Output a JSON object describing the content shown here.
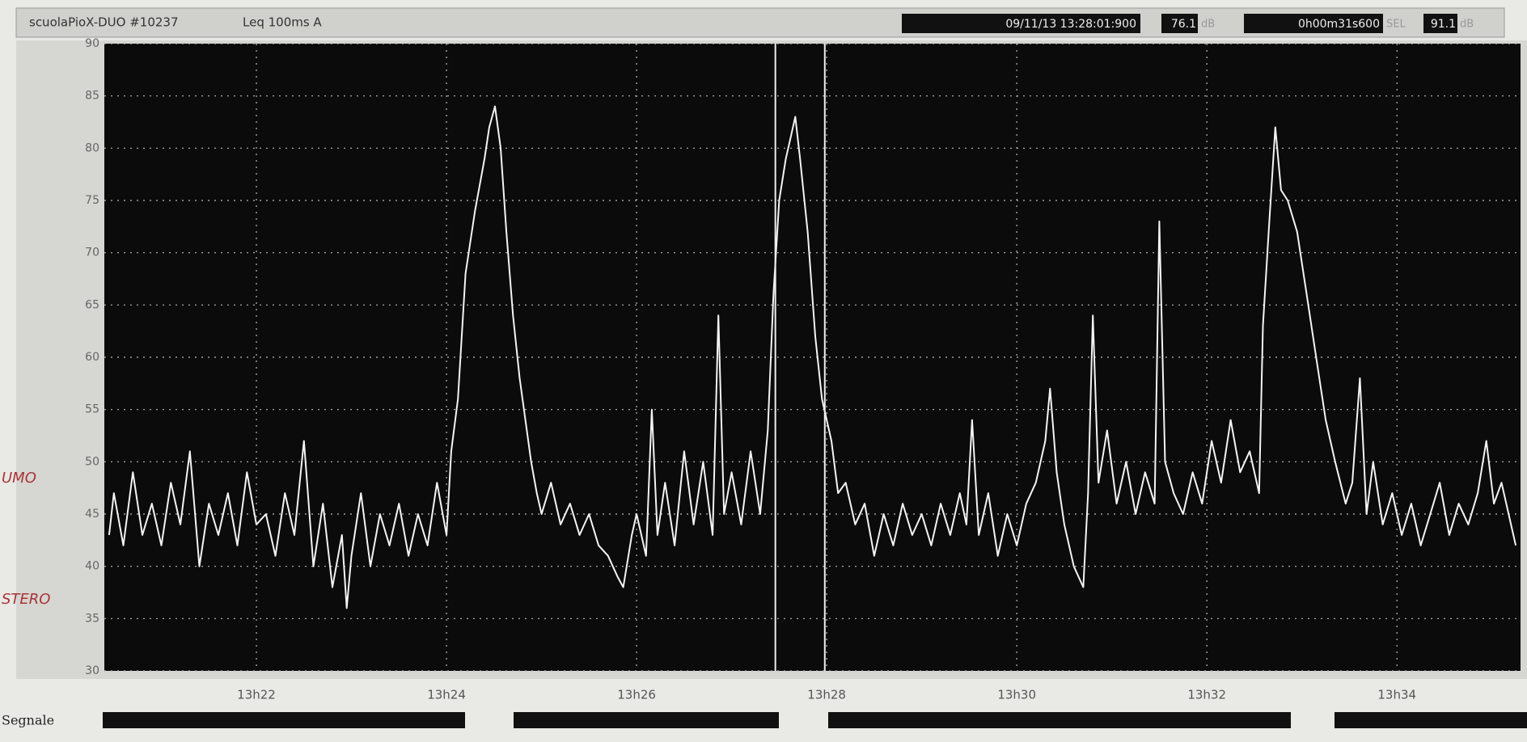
{
  "chart_data": {
    "type": "line",
    "title": "scuolaPioX-DUO #10237",
    "subtitle": "Leq 100ms  A",
    "readouts": [
      "09/11/13 13:28:01:900",
      "76.1",
      "dB",
      "0h00m31s600",
      "SEL",
      "91.1",
      "dB"
    ],
    "signal_label": "Segnale",
    "annotations": [
      "UMO",
      "STERO"
    ],
    "color": "#f4f4f4",
    "grid": true,
    "cursors": [
      27.46,
      27.98
    ],
    "xlim": [
      20.4,
      35.3
    ],
    "xticks": [
      {
        "value": 22,
        "label": "13h22"
      },
      {
        "value": 24,
        "label": "13h24"
      },
      {
        "value": 26,
        "label": "13h26"
      },
      {
        "value": 28,
        "label": "13h28"
      },
      {
        "value": 30,
        "label": "13h30"
      },
      {
        "value": 32,
        "label": "13h32"
      },
      {
        "value": 34,
        "label": "13h34"
      }
    ],
    "ylim": [
      30,
      90
    ],
    "yticks": [
      30,
      35,
      40,
      45,
      50,
      55,
      60,
      65,
      70,
      75,
      80,
      85,
      90
    ],
    "x": [
      20.45,
      20.5,
      20.6,
      20.7,
      20.8,
      20.9,
      21.0,
      21.1,
      21.2,
      21.3,
      21.4,
      21.5,
      21.6,
      21.7,
      21.8,
      21.9,
      22.0,
      22.1,
      22.2,
      22.3,
      22.4,
      22.5,
      22.6,
      22.7,
      22.8,
      22.9,
      22.95,
      23.0,
      23.1,
      23.2,
      23.3,
      23.4,
      23.5,
      23.6,
      23.7,
      23.8,
      23.9,
      24.0,
      24.05,
      24.12,
      24.2,
      24.3,
      24.4,
      24.45,
      24.51,
      24.57,
      24.63,
      24.7,
      24.77,
      24.83,
      24.89,
      24.95,
      25.0,
      25.1,
      25.2,
      25.3,
      25.4,
      25.5,
      25.6,
      25.7,
      25.8,
      25.86,
      25.95,
      26.0,
      26.1,
      26.16,
      26.22,
      26.3,
      26.4,
      26.5,
      26.6,
      26.7,
      26.8,
      26.86,
      26.92,
      27.0,
      27.1,
      27.2,
      27.3,
      27.38,
      27.44,
      27.5,
      27.57,
      27.62,
      27.67,
      27.72,
      27.8,
      27.88,
      27.95,
      28.05,
      28.12,
      28.2,
      28.3,
      28.4,
      28.5,
      28.6,
      28.7,
      28.8,
      28.9,
      29.0,
      29.1,
      29.2,
      29.3,
      29.4,
      29.47,
      29.53,
      29.6,
      29.7,
      29.8,
      29.9,
      30.0,
      30.1,
      30.2,
      30.3,
      30.35,
      30.42,
      30.5,
      30.6,
      30.7,
      30.75,
      30.8,
      30.86,
      30.95,
      31.05,
      31.15,
      31.25,
      31.35,
      31.45,
      31.5,
      31.56,
      31.65,
      31.75,
      31.85,
      31.95,
      32.05,
      32.15,
      32.25,
      32.35,
      32.45,
      32.55,
      32.59,
      32.65,
      32.72,
      32.78,
      32.85,
      32.95,
      33.05,
      33.15,
      33.25,
      33.35,
      33.46,
      33.53,
      33.61,
      33.68,
      33.75,
      33.85,
      33.95,
      34.05,
      34.15,
      34.25,
      34.35,
      34.45,
      34.55,
      34.65,
      34.75,
      34.85,
      34.94,
      35.02,
      35.1,
      35.2,
      35.25
    ],
    "values": [
      43,
      47,
      42,
      49,
      43,
      46,
      42,
      48,
      44,
      51,
      40,
      46,
      43,
      47,
      42,
      49,
      44,
      45,
      41,
      47,
      43,
      52,
      40,
      46,
      38,
      43,
      36,
      41,
      47,
      40,
      45,
      42,
      46,
      41,
      45,
      42,
      48,
      43,
      51,
      56,
      68,
      74,
      79,
      82,
      84,
      80,
      72,
      64,
      58,
      54,
      50,
      47,
      45,
      48,
      44,
      46,
      43,
      45,
      42,
      41,
      39,
      38,
      43,
      45,
      41,
      55,
      43,
      48,
      42,
      51,
      44,
      50,
      43,
      64,
      45,
      49,
      44,
      51,
      45,
      53,
      66,
      75,
      79,
      81,
      83,
      79,
      72,
      62,
      56,
      52,
      47,
      48,
      44,
      46,
      41,
      45,
      42,
      46,
      43,
      45,
      42,
      46,
      43,
      47,
      44,
      54,
      43,
      47,
      41,
      45,
      42,
      46,
      48,
      52,
      57,
      49,
      44,
      40,
      38,
      47,
      64,
      48,
      53,
      46,
      50,
      45,
      49,
      46,
      73,
      50,
      47,
      45,
      49,
      46,
      52,
      48,
      54,
      49,
      51,
      47,
      63,
      72,
      82,
      76,
      75,
      72,
      66,
      60,
      54,
      50,
      46,
      48,
      58,
      45,
      50,
      44,
      47,
      43,
      46,
      42,
      45,
      48,
      43,
      46,
      44,
      47,
      52,
      46,
      48,
      44,
      42
    ]
  }
}
